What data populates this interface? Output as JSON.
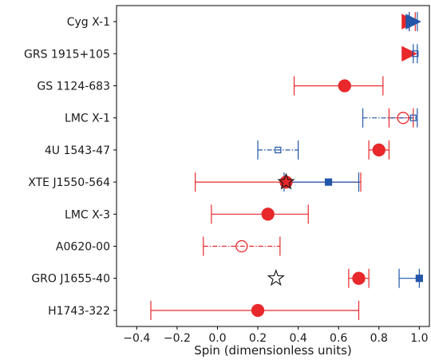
{
  "chart_data": {
    "type": "scatter",
    "title": "",
    "xlabel": "Spin (dimensionless units)",
    "xlim": [
      -0.5,
      1.05
    ],
    "xticks": [
      -0.4,
      -0.2,
      0.0,
      0.2,
      0.4,
      0.6,
      0.8,
      1.0
    ],
    "xtick_labels": [
      "−0.4",
      "−0.2",
      "0.0",
      "0.2",
      "0.4",
      "0.6",
      "0.8",
      "1.0"
    ],
    "grid": false,
    "legend": "none",
    "colors": {
      "red": "#e8282b",
      "blue": "#2356a8",
      "black": "#111111"
    },
    "categories": [
      "Cyg X-1",
      "GRS 1915+105",
      "GS 1124-683",
      "LMC X-1",
      "4U 1543-47",
      "XTE J1550-564",
      "LMC X-3",
      "A0620-00",
      "GRO J1655-40",
      "H1743-322"
    ],
    "points": [
      {
        "category": "Cyg X-1",
        "x": 0.95,
        "lo": 0.95,
        "hi": 0.98,
        "marker": "triangle-right",
        "color": "red",
        "filled": true,
        "line": "solid"
      },
      {
        "category": "Cyg X-1",
        "x": 0.97,
        "lo": 0.95,
        "hi": 0.99,
        "marker": "triangle-right",
        "color": "blue",
        "filled": true,
        "line": "solid"
      },
      {
        "category": "GRS 1915+105",
        "x": 0.95,
        "lo": 0.95,
        "hi": 0.95,
        "marker": "triangle-right",
        "color": "red",
        "filled": true,
        "line": "none"
      },
      {
        "category": "GRS 1915+105",
        "x": 0.98,
        "lo": 0.97,
        "hi": 0.99,
        "marker": "square",
        "color": "blue",
        "filled": false,
        "line": "solid"
      },
      {
        "category": "GS 1124-683",
        "x": 0.63,
        "lo": 0.38,
        "hi": 0.82,
        "marker": "circle",
        "color": "red",
        "filled": true,
        "line": "solid"
      },
      {
        "category": "LMC X-1",
        "x": 0.92,
        "lo": 0.85,
        "hi": 0.97,
        "marker": "circle",
        "color": "red",
        "filled": false,
        "line": "dashdot"
      },
      {
        "category": "LMC X-1",
        "x": 0.97,
        "lo": 0.72,
        "hi": 0.99,
        "marker": "square",
        "color": "blue",
        "filled": false,
        "line": "dashdot"
      },
      {
        "category": "4U 1543-47",
        "x": 0.8,
        "lo": 0.75,
        "hi": 0.85,
        "marker": "circle",
        "color": "red",
        "filled": true,
        "line": "solid"
      },
      {
        "category": "4U 1543-47",
        "x": 0.3,
        "lo": 0.2,
        "hi": 0.4,
        "marker": "square",
        "color": "blue",
        "filled": false,
        "line": "dashdot"
      },
      {
        "category": "XTE J1550-564",
        "x": 0.34,
        "lo": -0.11,
        "hi": 0.71,
        "marker": "circle",
        "color": "red",
        "filled": true,
        "line": "solid"
      },
      {
        "category": "XTE J1550-564",
        "x": 0.55,
        "lo": 0.33,
        "hi": 0.7,
        "marker": "square",
        "color": "blue",
        "filled": true,
        "line": "solid"
      },
      {
        "category": "XTE J1550-564",
        "x": 0.34,
        "lo": 0.34,
        "hi": 0.34,
        "marker": "star",
        "color": "black",
        "filled": false,
        "line": "none"
      },
      {
        "category": "LMC X-3",
        "x": 0.25,
        "lo": -0.03,
        "hi": 0.45,
        "marker": "circle",
        "color": "red",
        "filled": true,
        "line": "solid"
      },
      {
        "category": "A0620-00",
        "x": 0.12,
        "lo": -0.07,
        "hi": 0.31,
        "marker": "circle",
        "color": "red",
        "filled": false,
        "line": "dashdot"
      },
      {
        "category": "GRO J1655-40",
        "x": 0.7,
        "lo": 0.65,
        "hi": 0.75,
        "marker": "circle",
        "color": "red",
        "filled": true,
        "line": "solid"
      },
      {
        "category": "GRO J1655-40",
        "x": 1.0,
        "lo": 0.9,
        "hi": 1.0,
        "marker": "square",
        "color": "blue",
        "filled": true,
        "line": "solid"
      },
      {
        "category": "GRO J1655-40",
        "x": 0.29,
        "lo": 0.29,
        "hi": 0.29,
        "marker": "star",
        "color": "black",
        "filled": false,
        "line": "none"
      },
      {
        "category": "H1743-322",
        "x": 0.2,
        "lo": -0.33,
        "hi": 0.7,
        "marker": "circle",
        "color": "red",
        "filled": true,
        "line": "solid"
      }
    ]
  }
}
